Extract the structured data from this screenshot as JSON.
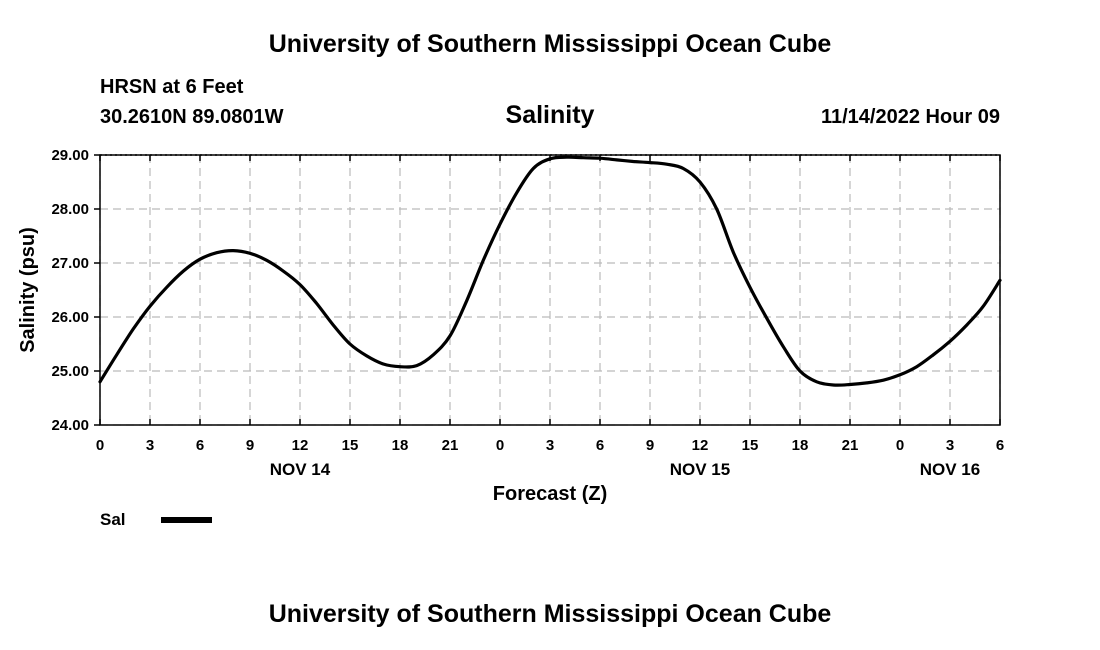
{
  "header": {
    "title": "University of Southern Mississippi Ocean Cube",
    "station": "HRSN at 6 Feet",
    "coords": "30.2610N  89.0801W",
    "parameter": "Salinity",
    "runtime": "11/14/2022 Hour 09"
  },
  "footer": {
    "title": "University of Southern Mississippi Ocean Cube"
  },
  "legend": {
    "label": "Sal",
    "color": "#000000"
  },
  "chart_data": {
    "type": "line",
    "xlabel": "Forecast (Z)",
    "ylabel": "Salinity (psu)",
    "xlim": [
      0,
      54
    ],
    "ylim": [
      24.0,
      29.0
    ],
    "x_ticks": [
      0,
      3,
      6,
      9,
      12,
      15,
      18,
      21,
      24,
      27,
      30,
      33,
      36,
      39,
      42,
      45,
      48,
      51,
      54
    ],
    "x_tick_labels": [
      "0",
      "3",
      "6",
      "9",
      "12",
      "15",
      "18",
      "21",
      "0",
      "3",
      "6",
      "9",
      "12",
      "15",
      "18",
      "21",
      "0",
      "3",
      "6"
    ],
    "day_labels": [
      {
        "x": 12,
        "label": "NOV 14"
      },
      {
        "x": 36,
        "label": "NOV 15"
      },
      {
        "x": 51,
        "label": "NOV 16"
      }
    ],
    "y_ticks": [
      24.0,
      25.0,
      26.0,
      27.0,
      28.0,
      29.0
    ],
    "y_tick_labels": [
      "24.00",
      "25.00",
      "26.00",
      "27.00",
      "28.00",
      "29.00"
    ],
    "grid": true,
    "series": [
      {
        "name": "Sal",
        "color": "#000000",
        "x": [
          0,
          1,
          2,
          3,
          4,
          5,
          6,
          7,
          8,
          9,
          10,
          11,
          12,
          13,
          14,
          15,
          16,
          17,
          18,
          19,
          20,
          21,
          22,
          23,
          24,
          25,
          26,
          27,
          28,
          29,
          30,
          31,
          32,
          33,
          34,
          35,
          36,
          37,
          38,
          39,
          40,
          41,
          42,
          43,
          44,
          45,
          46,
          47,
          48,
          49,
          50,
          51,
          52,
          53,
          54
        ],
        "values": [
          24.8,
          25.3,
          25.78,
          26.2,
          26.55,
          26.85,
          27.07,
          27.19,
          27.23,
          27.18,
          27.05,
          26.85,
          26.6,
          26.25,
          25.85,
          25.5,
          25.28,
          25.13,
          25.08,
          25.1,
          25.3,
          25.65,
          26.3,
          27.05,
          27.72,
          28.3,
          28.75,
          28.93,
          28.96,
          28.95,
          28.94,
          28.91,
          28.88,
          28.86,
          28.83,
          28.75,
          28.5,
          28.0,
          27.2,
          26.55,
          25.98,
          25.45,
          25.0,
          24.8,
          24.74,
          24.75,
          24.78,
          24.83,
          24.93,
          25.08,
          25.3,
          25.55,
          25.85,
          26.2,
          26.68
        ]
      }
    ]
  }
}
